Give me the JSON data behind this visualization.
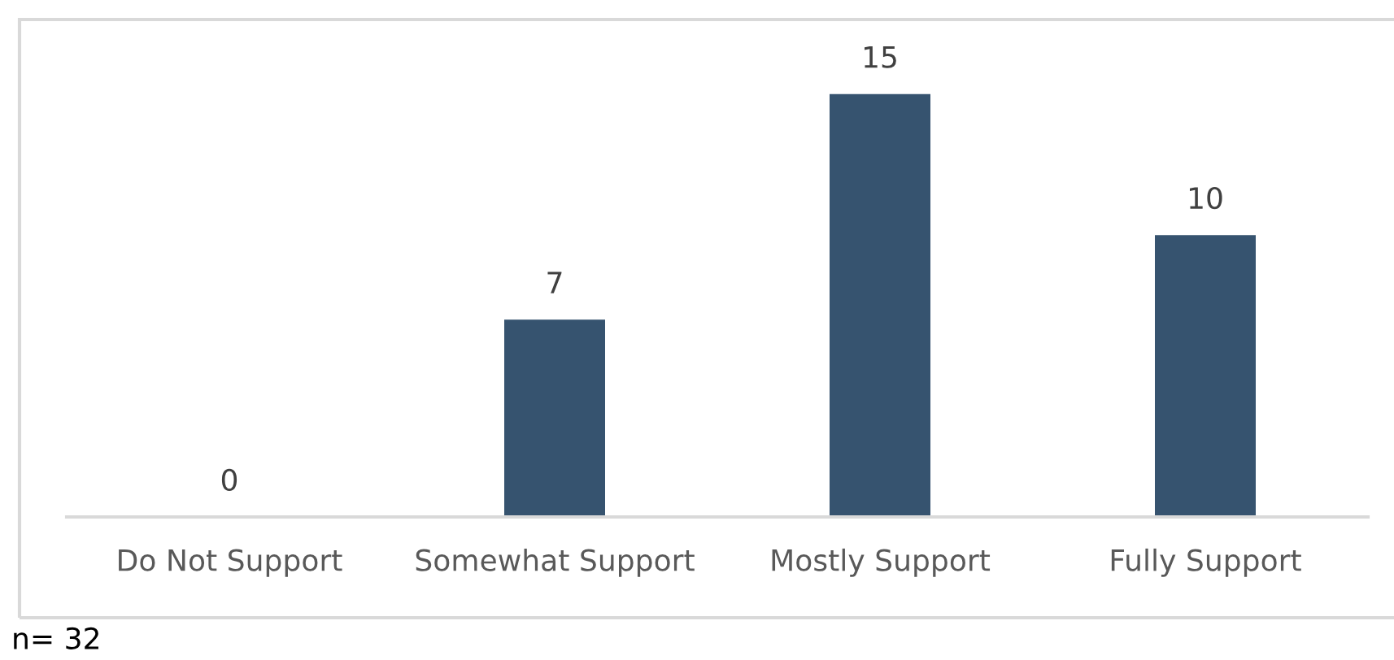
{
  "chart_data": {
    "type": "bar",
    "categories": [
      "Do Not Support",
      "Somewhat Support",
      "Mostly Support",
      "Fully Support"
    ],
    "values": [
      0,
      7,
      15,
      10
    ],
    "color": "#36536f",
    "data_labels": true,
    "annotations": [
      "n= 32"
    ]
  }
}
